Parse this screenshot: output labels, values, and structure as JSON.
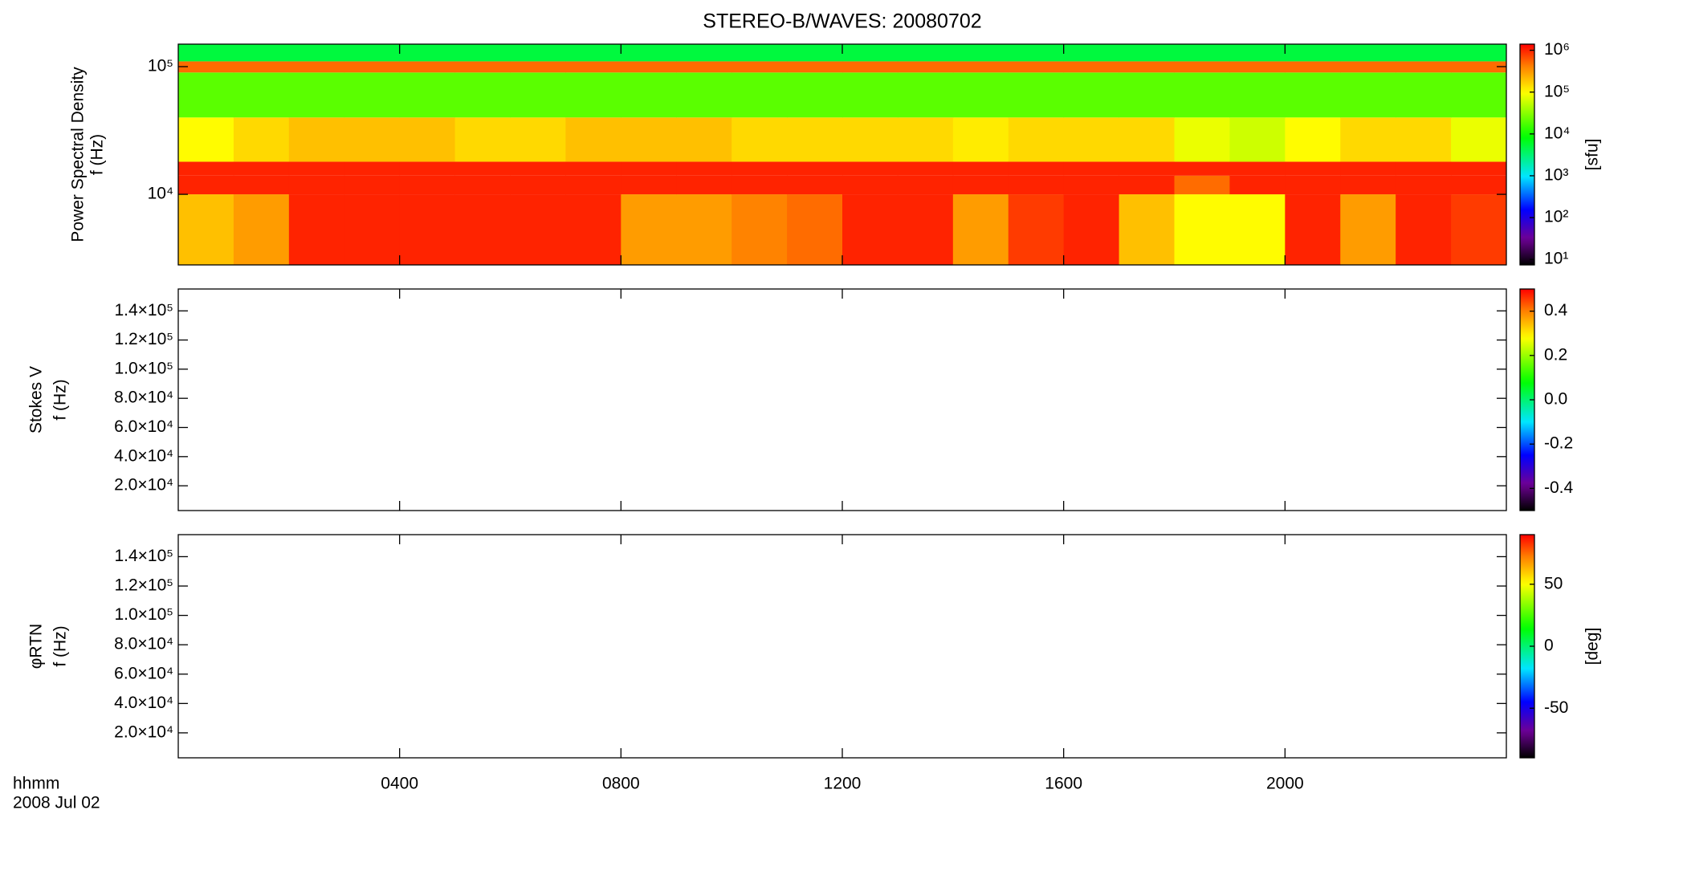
{
  "chart_data": [
    {
      "type": "heatmap",
      "title": "STEREO-B/WAVES: 20080702",
      "colormap": "rainbow",
      "ylabel": [
        "Power Spectral Density",
        "f (Hz)"
      ],
      "ylog": true,
      "ylim": [
        2800,
        150000
      ],
      "yticks": [
        {
          "value": 10000,
          "label": "10⁴"
        },
        {
          "value": 100000,
          "label": "10⁵"
        }
      ],
      "xbins": [
        0,
        1,
        2,
        3,
        4,
        5,
        6,
        7,
        8,
        9,
        10,
        11,
        12,
        13,
        14,
        15,
        16,
        17,
        18,
        19,
        20,
        21,
        22,
        23,
        24
      ],
      "ybins": [
        2800,
        10000,
        14000,
        18000,
        40000,
        90000,
        110000,
        150000
      ],
      "z": [
        [
          200000,
          300000,
          1000000,
          1000000,
          1000000,
          1000000,
          1000000,
          1000000,
          300000,
          300000,
          400000,
          500000,
          1000000,
          1000000,
          300000,
          800000,
          1000000,
          200000,
          100000,
          100000,
          1000000,
          300000,
          1000000,
          800000
        ],
        [
          1000000,
          1000000,
          1000000,
          1000000,
          1000000,
          1000000,
          1000000,
          1000000,
          1000000,
          1000000,
          1000000,
          1000000,
          1000000,
          1000000,
          1000000,
          1000000,
          1000000,
          1000000,
          500000,
          1000000,
          1000000,
          1000000,
          1000000,
          1000000
        ],
        [
          1000000,
          1000000,
          1000000,
          1000000,
          1000000,
          1000000,
          1000000,
          1000000,
          1000000,
          1000000,
          1000000,
          1000000,
          1000000,
          1000000,
          1000000,
          1000000,
          1000000,
          1000000,
          1000000,
          1000000,
          1000000,
          1000000,
          1000000,
          1000000
        ],
        [
          100000,
          150000,
          200000,
          200000,
          200000,
          150000,
          150000,
          200000,
          200000,
          200000,
          150000,
          150000,
          150000,
          150000,
          120000,
          150000,
          150000,
          150000,
          80000,
          60000,
          100000,
          150000,
          150000,
          80000
        ],
        [
          20000,
          20000,
          20000,
          20000,
          20000,
          20000,
          20000,
          20000,
          20000,
          20000,
          20000,
          20000,
          20000,
          20000,
          20000,
          20000,
          20000,
          20000,
          20000,
          20000,
          20000,
          20000,
          20000,
          20000
        ],
        [
          500000,
          500000,
          500000,
          500000,
          500000,
          500000,
          500000,
          500000,
          500000,
          500000,
          500000,
          500000,
          500000,
          500000,
          500000,
          500000,
          500000,
          500000,
          500000,
          500000,
          500000,
          500000,
          500000,
          500000
        ],
        [
          5000,
          5000,
          5000,
          5000,
          5000,
          5000,
          5000,
          5000,
          5000,
          5000,
          5000,
          5000,
          5000,
          5000,
          5000,
          5000,
          5000,
          5000,
          5000,
          5000,
          5000,
          5000,
          5000,
          5000
        ]
      ],
      "zlog": true,
      "zlim": [
        7.4,
        1400000
      ],
      "zticks": [
        {
          "value": 10,
          "label": "10¹"
        },
        {
          "value": 100,
          "label": "10²"
        },
        {
          "value": 1000,
          "label": "10³"
        },
        {
          "value": 10000,
          "label": "10⁴"
        },
        {
          "value": 100000,
          "label": "10⁵"
        },
        {
          "value": 1000000,
          "label": "10⁶"
        }
      ],
      "zlabel": "[sfu]"
    },
    {
      "type": "heatmap",
      "colormap": "rainbow",
      "ylabel": [
        "Stokes V",
        "f (Hz)"
      ],
      "ylim": [
        3000,
        155000
      ],
      "yticks": [
        {
          "value": 20000,
          "label": "2.0×10⁴"
        },
        {
          "value": 40000,
          "label": "4.0×10⁴"
        },
        {
          "value": 60000,
          "label": "6.0×10⁴"
        },
        {
          "value": 80000,
          "label": "8.0×10⁴"
        },
        {
          "value": 100000,
          "label": "1.0×10⁵"
        },
        {
          "value": 120000,
          "label": "1.2×10⁵"
        },
        {
          "value": 140000,
          "label": "1.4×10⁵"
        }
      ],
      "zlim": [
        -0.5,
        0.5
      ],
      "zticks": [
        -0.4,
        -0.2,
        {
          "value": 0,
          "label": "0.0"
        },
        0.2,
        0.4
      ]
    },
    {
      "type": "heatmap",
      "colormap": "rainbow",
      "ylabel": [
        "φRTN",
        "f (Hz)"
      ],
      "ylim": [
        3000,
        155000
      ],
      "yticks": [
        {
          "value": 20000,
          "label": "2.0×10⁴"
        },
        {
          "value": 40000,
          "label": "4.0×10⁴"
        },
        {
          "value": 60000,
          "label": "6.0×10⁴"
        },
        {
          "value": 80000,
          "label": "8.0×10⁴"
        },
        {
          "value": 100000,
          "label": "1.0×10⁵"
        },
        {
          "value": 120000,
          "label": "1.2×10⁵"
        },
        {
          "value": 140000,
          "label": "1.4×10⁵"
        }
      ],
      "zlim": [
        -90,
        90
      ],
      "zticks": [
        -50,
        0,
        50
      ],
      "zlabel": "[deg]",
      "xlim": [
        0,
        24
      ],
      "xticks": [
        {
          "value": 4,
          "label": "0400"
        },
        {
          "value": 8,
          "label": "0800"
        },
        {
          "value": 12,
          "label": "1200"
        },
        {
          "value": 16,
          "label": "1600"
        },
        {
          "value": 20,
          "label": "2000"
        }
      ],
      "xlabel": "hhmm",
      "date": "2008 Jul 02"
    }
  ]
}
